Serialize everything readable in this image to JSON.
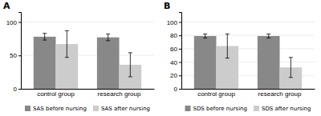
{
  "chart_data": [
    {
      "type": "bar",
      "title": "A",
      "categories": [
        "control group",
        "research group"
      ],
      "series": [
        {
          "name": "SAS before nursing",
          "color": "#888888",
          "values": [
            78,
            77
          ],
          "errors": [
            5,
            5
          ]
        },
        {
          "name": "SAS after nursing",
          "color": "#cccccc",
          "values": [
            67,
            36
          ],
          "errors": [
            20,
            18
          ]
        }
      ],
      "ylim": [
        0,
        115
      ],
      "yticks": [
        0,
        50,
        100
      ],
      "grid": true,
      "legend": "bottom"
    },
    {
      "type": "bar",
      "title": "B",
      "categories": [
        "control group",
        "research group"
      ],
      "series": [
        {
          "name": "SDS before nursing",
          "color": "#888888",
          "values": [
            79,
            79
          ],
          "errors": [
            3,
            3
          ]
        },
        {
          "name": "SDS after nursing",
          "color": "#cccccc",
          "values": [
            64,
            32
          ],
          "errors": [
            18,
            15
          ]
        }
      ],
      "ylim": [
        0,
        115
      ],
      "yticks": [
        0,
        20,
        40,
        60,
        80,
        100
      ],
      "grid": true,
      "legend": "bottom"
    }
  ]
}
